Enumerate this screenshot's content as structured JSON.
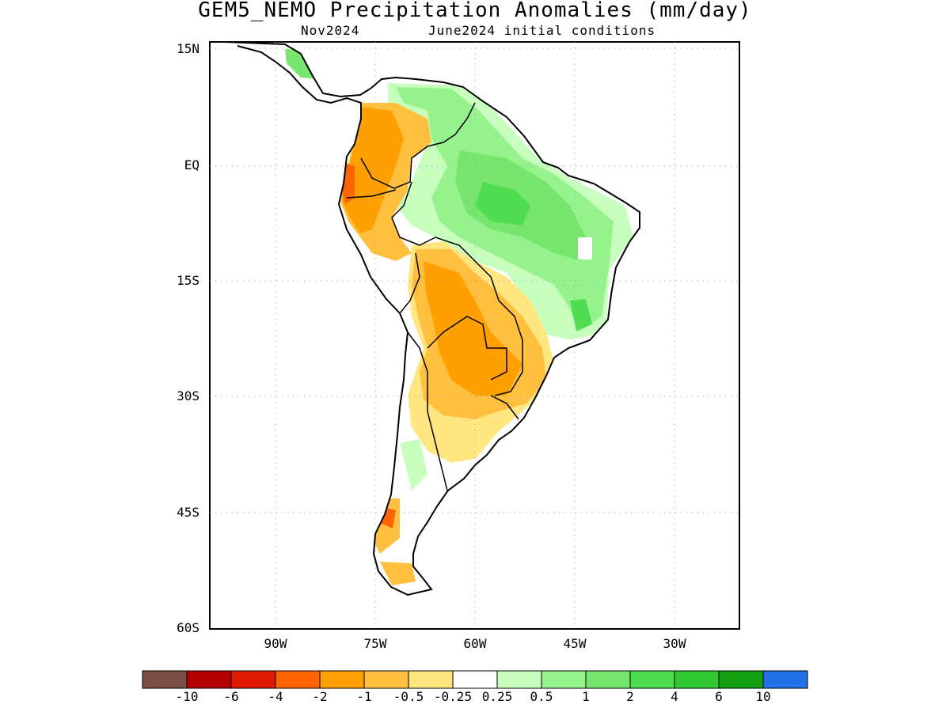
{
  "title": "GEM5_NEMO Precipitation Anomalies (mm/day)",
  "subtitle_left": "Nov2024",
  "subtitle_right": "June2024 initial conditions",
  "lat_ticks": [
    "15N",
    "EQ",
    "15S",
    "30S",
    "45S",
    "60S"
  ],
  "lon_ticks": [
    "90W",
    "75W",
    "60W",
    "45W",
    "30W"
  ],
  "colorbar": {
    "colors": [
      "#7a4e45",
      "#b40000",
      "#e01a00",
      "#ff6400",
      "#ffa000",
      "#ffc040",
      "#ffe680",
      "#ffffff",
      "#c8ffbe",
      "#96f28c",
      "#78e66e",
      "#50dc50",
      "#32c832",
      "#12a012",
      "#2070e8"
    ],
    "labels": [
      "-10",
      "-6",
      "-4",
      "-2",
      "-1",
      "-0.5",
      "-0.25",
      "0.25",
      "0.5",
      "1",
      "2",
      "4",
      "6",
      "10"
    ]
  }
}
